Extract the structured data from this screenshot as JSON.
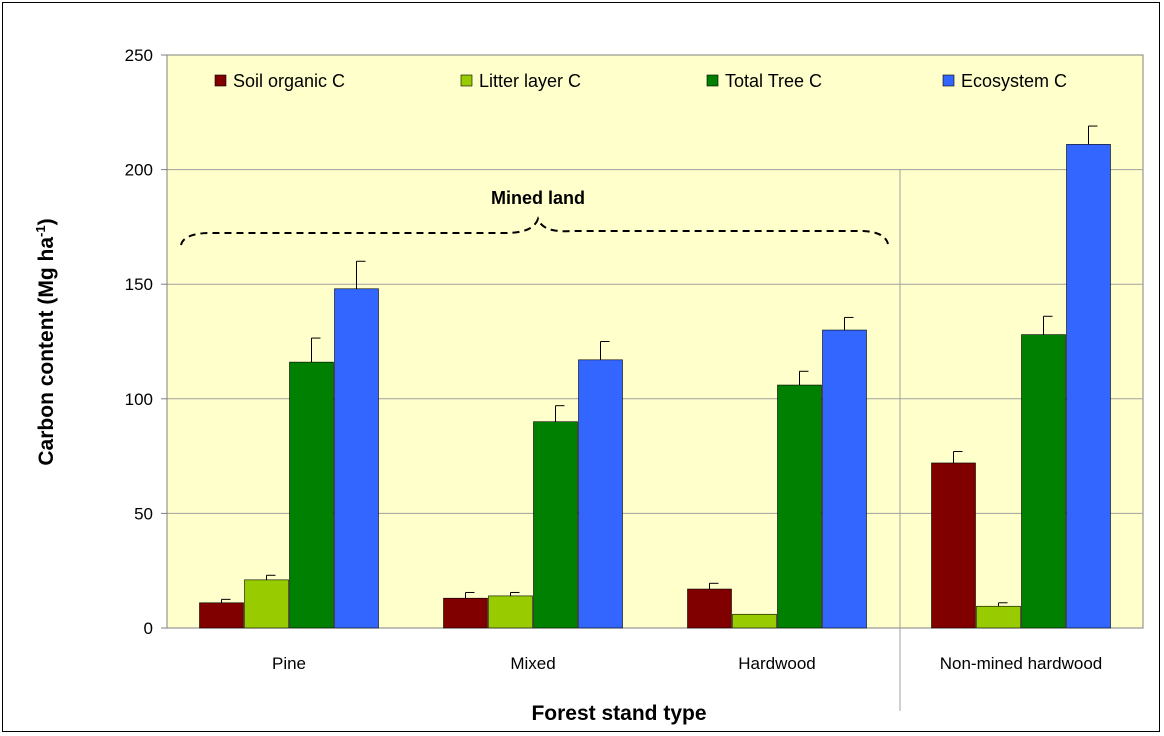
{
  "chart_data": {
    "type": "bar",
    "categories": [
      "Pine",
      "Mixed",
      "Hardwood",
      "Non-mined hardwood"
    ],
    "series": [
      {
        "name": "Soil organic C",
        "color": "#800000",
        "values": [
          11,
          13,
          17,
          72
        ],
        "errors": [
          1.5,
          2.5,
          2.5,
          5
        ]
      },
      {
        "name": "Litter layer C",
        "color": "#99CC00",
        "values": [
          21,
          14,
          6,
          9.5
        ],
        "errors": [
          2,
          1.5,
          0,
          1.5
        ]
      },
      {
        "name": "Total Tree C",
        "color": "#008000",
        "values": [
          116,
          90,
          106,
          128
        ],
        "errors": [
          10.5,
          7,
          6,
          8
        ]
      },
      {
        "name": "Ecosystem C",
        "color": "#3366FF",
        "values": [
          148,
          117,
          130,
          211
        ],
        "errors": [
          12,
          8,
          5.5,
          8
        ]
      }
    ],
    "xlabel": "Forest stand type",
    "ylabel_main": "Carbon content (Mg ha",
    "ylabel_sup": "-1",
    "ylabel_close": ")",
    "ylim": [
      0,
      250
    ],
    "yticks": [
      0,
      50,
      100,
      150,
      200,
      250
    ],
    "plot_background": "#FFFFCC",
    "grid": true,
    "legend_position": "top",
    "annotation": {
      "text": "Mined land",
      "spans_categories": [
        "Pine",
        "Mixed",
        "Hardwood"
      ]
    }
  }
}
